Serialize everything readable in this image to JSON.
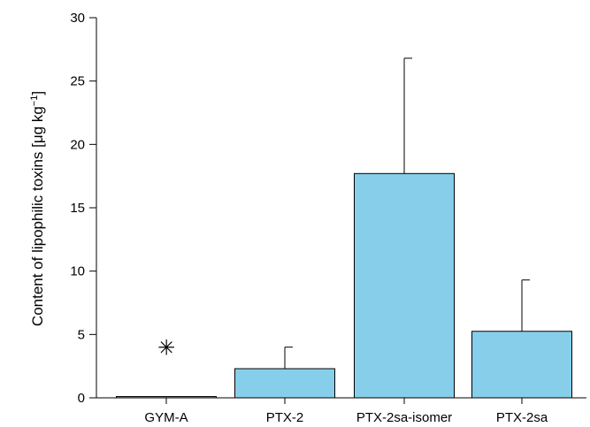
{
  "chart_data": {
    "type": "bar",
    "categories": [
      "GYM-A",
      "PTX-2",
      "PTX-2sa-isomer",
      "PTX-2sa"
    ],
    "values": [
      0.1,
      2.3,
      17.7,
      5.25
    ],
    "error_upper": [
      null,
      4.0,
      26.8,
      9.3
    ],
    "markers": [
      {
        "category": "GYM-A",
        "y": 4.0,
        "symbol": "✳"
      }
    ],
    "ylabel_prefix": "Content of lipophilic toxins [μg kg",
    "ylabel_sup": "−1",
    "ylabel_suffix": "]",
    "xlabel": "",
    "title": "",
    "ylim": [
      0,
      30
    ],
    "yticks": [
      0,
      5,
      10,
      15,
      20,
      25,
      30
    ],
    "ytick_labels": [
      "0",
      "5",
      "10",
      "15",
      "20",
      "25",
      "30"
    ],
    "grid": false,
    "bar_color": "#87ceeb"
  }
}
